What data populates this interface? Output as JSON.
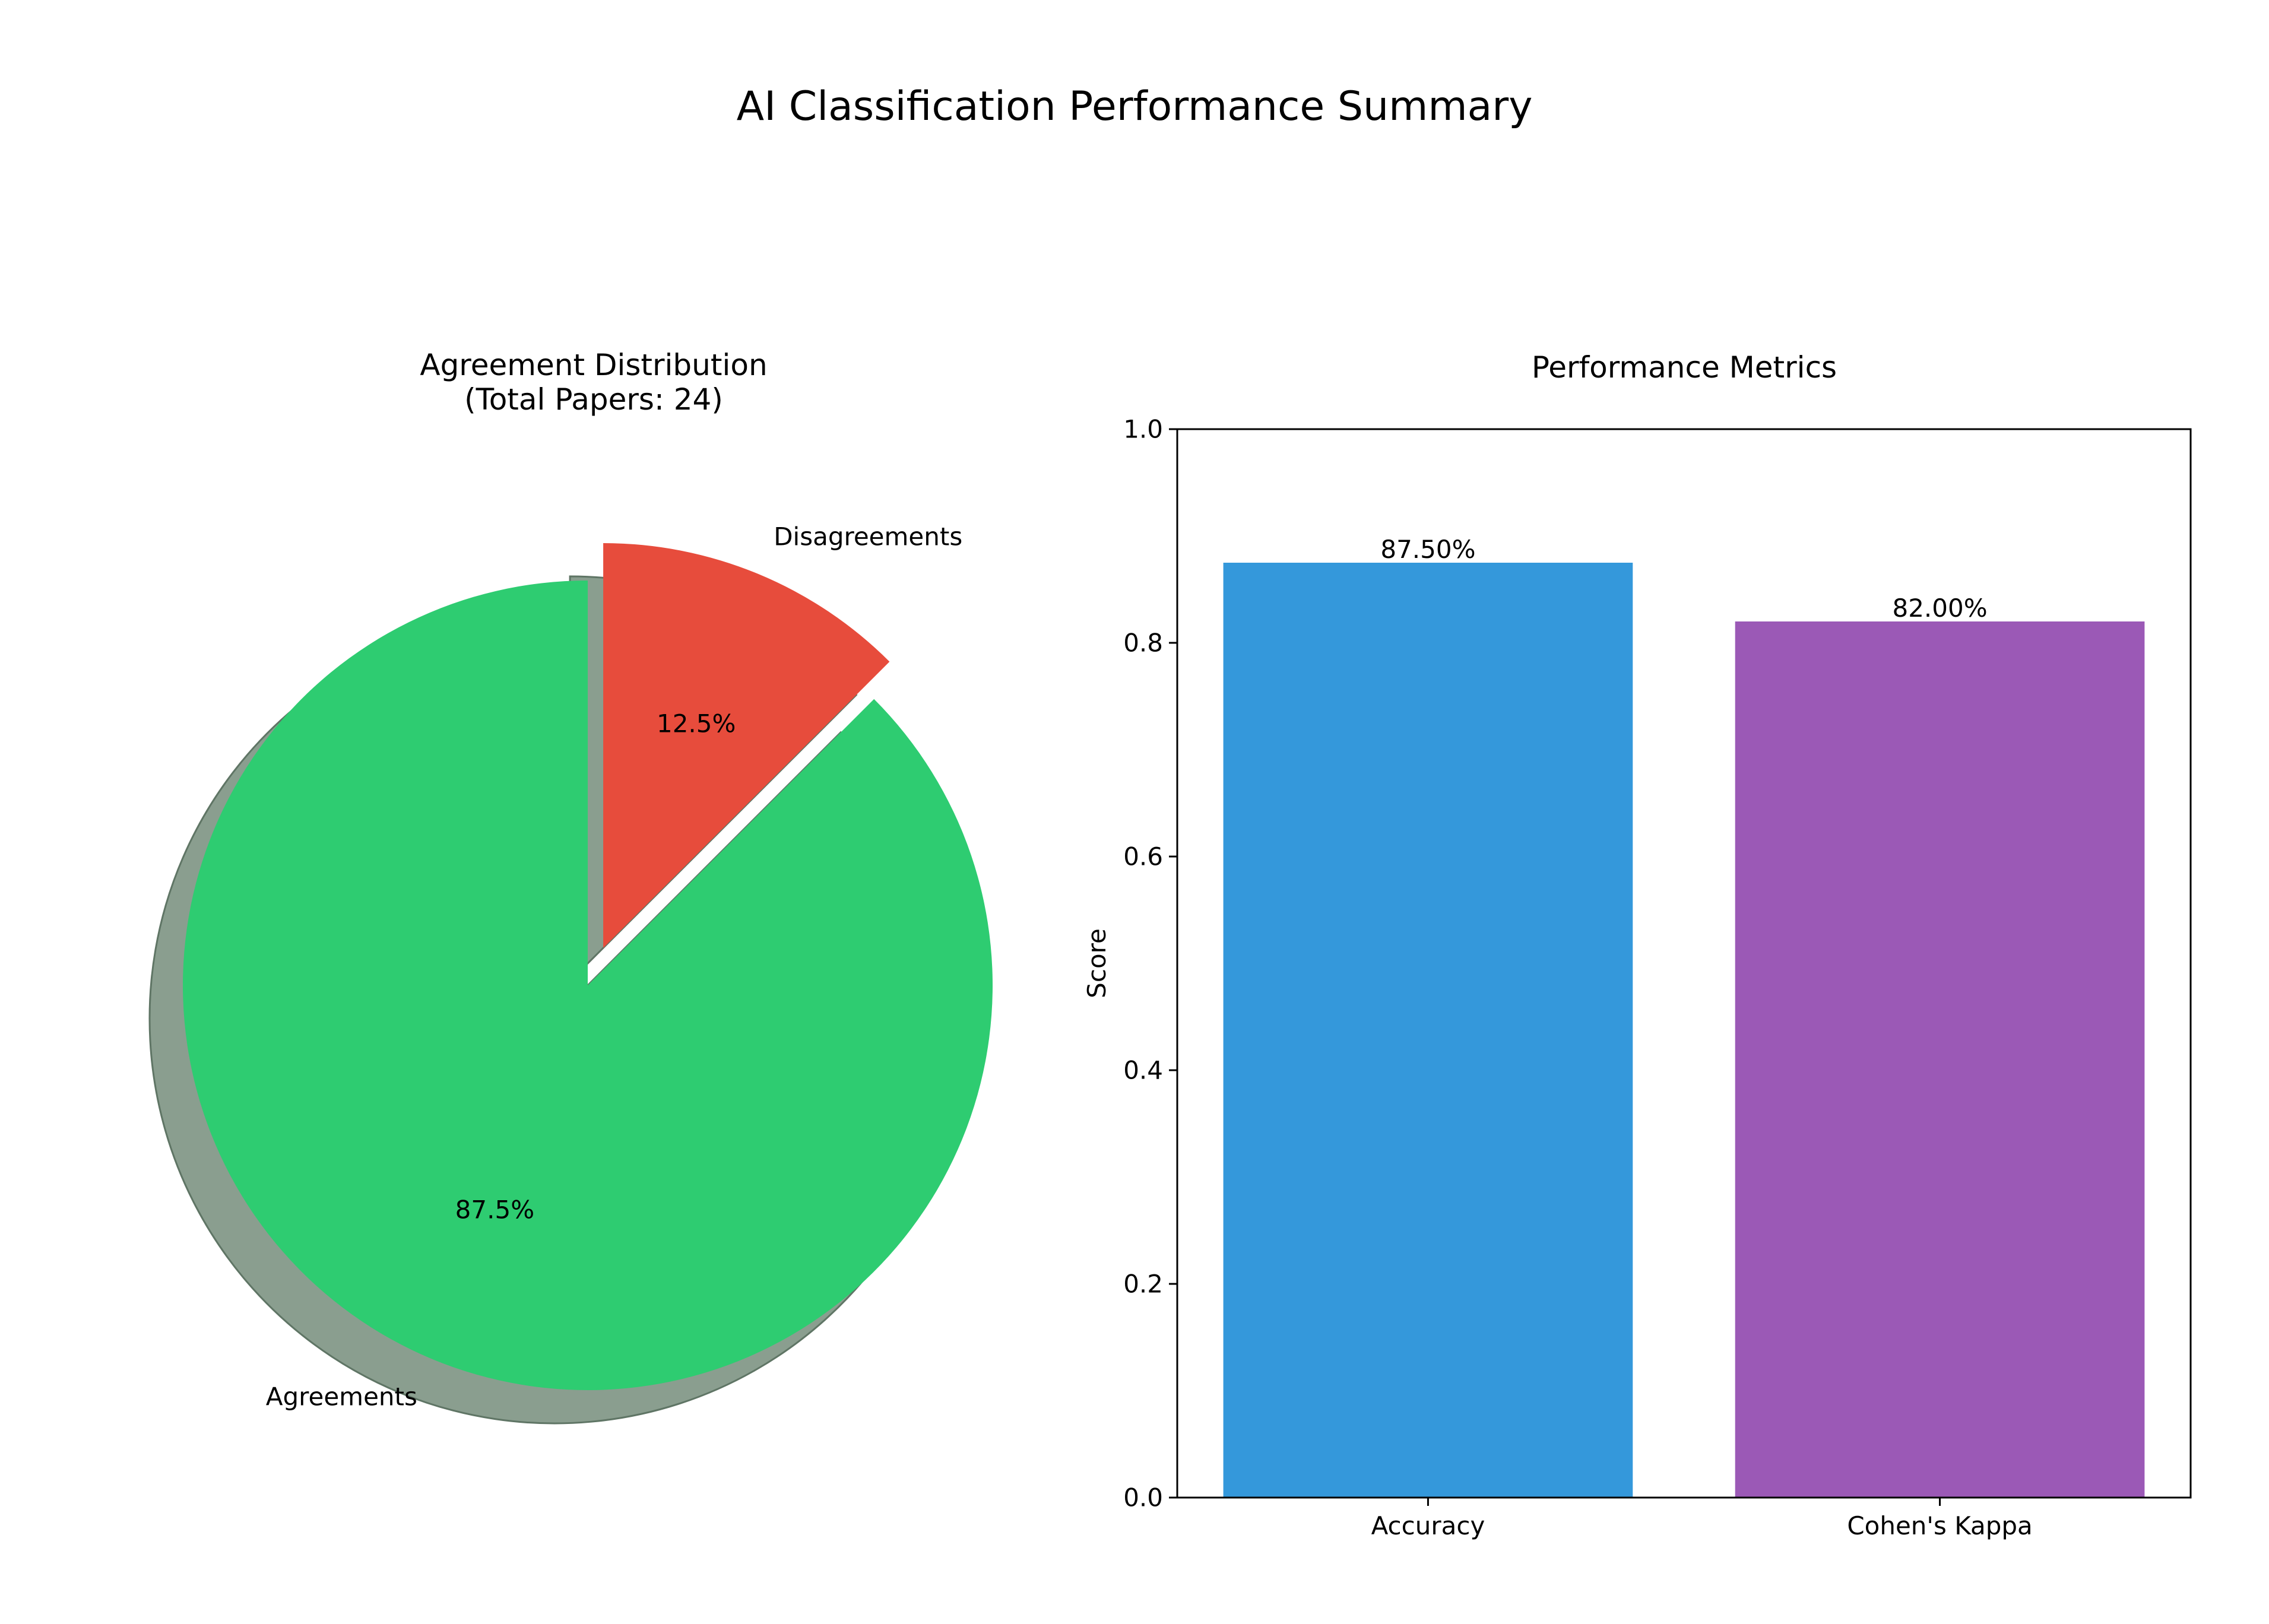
{
  "figure": {
    "title": "AI Classification Performance Summary"
  },
  "chart_data": [
    {
      "type": "pie",
      "title": "Agreement Distribution",
      "subtitle": "(Total Papers: 24)",
      "total_papers": 24,
      "slices": [
        {
          "label": "Agreements",
          "value": 21,
          "percent_label": "87.5%",
          "color": "#2ecc71",
          "exploded": false
        },
        {
          "label": "Disagreements",
          "value": 3,
          "percent_label": "12.5%",
          "color": "#e74c3c",
          "exploded": true
        }
      ],
      "start_angle_deg": 90,
      "direction": "counterclockwise",
      "shadow": true,
      "shadow_color": "#8a9e8f"
    },
    {
      "type": "bar",
      "title": "Performance Metrics",
      "xlabel": "",
      "ylabel": "Score",
      "ylim": [
        0,
        1.0
      ],
      "yticks": [
        0.0,
        0.2,
        0.4,
        0.6,
        0.8,
        1.0
      ],
      "ytick_labels": [
        "0.0",
        "0.2",
        "0.4",
        "0.6",
        "0.8",
        "1.0"
      ],
      "categories": [
        "Accuracy",
        "Cohen's Kappa"
      ],
      "values": [
        0.875,
        0.82
      ],
      "value_labels": [
        "87.50%",
        "82.00%"
      ],
      "colors": [
        "#3498db",
        "#9b59b6"
      ],
      "grid": false
    }
  ]
}
